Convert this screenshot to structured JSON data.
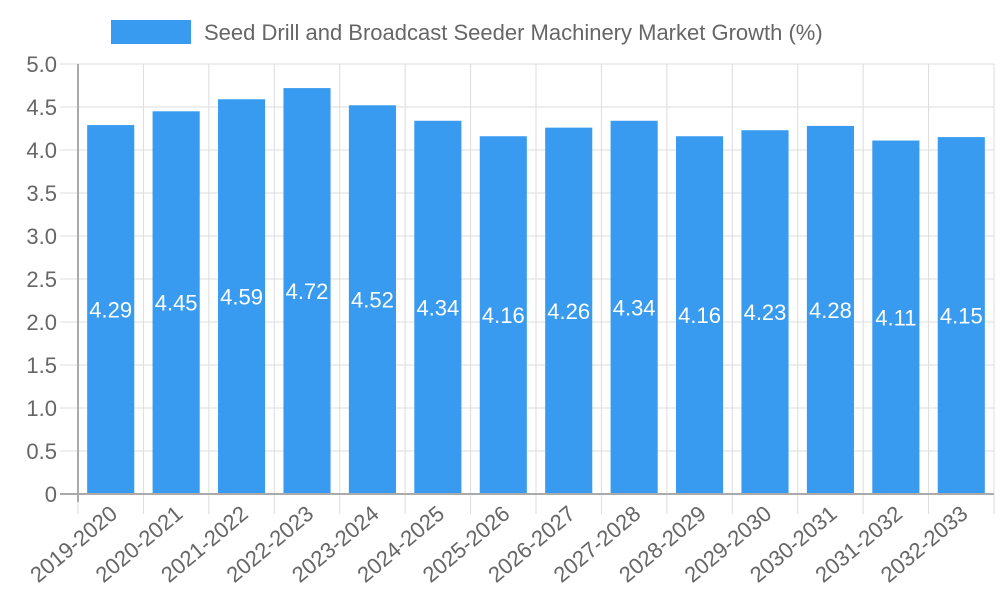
{
  "chart_data": {
    "type": "bar",
    "title": "",
    "legend": [
      {
        "label": "Seed Drill and Broadcast Seeder Machinery Market Growth (%)",
        "color": "#389BF0"
      }
    ],
    "legend_position": "top",
    "categories": [
      "2019-2020",
      "2020-2021",
      "2021-2022",
      "2022-2023",
      "2023-2024",
      "2024-2025",
      "2025-2026",
      "2026-2027",
      "2027-2028",
      "2028-2029",
      "2029-2030",
      "2030-2031",
      "2031-2032",
      "2032-2033"
    ],
    "series": [
      {
        "name": "Seed Drill and Broadcast Seeder Machinery Market Growth (%)",
        "values": [
          4.29,
          4.45,
          4.59,
          4.72,
          4.52,
          4.34,
          4.16,
          4.26,
          4.34,
          4.16,
          4.23,
          4.28,
          4.11,
          4.15
        ],
        "color": "#389BF0"
      }
    ],
    "data_labels": [
      "4.29",
      "4.45",
      "4.59",
      "4.72",
      "4.52",
      "4.34",
      "4.16",
      "4.26",
      "4.34",
      "4.16",
      "4.23",
      "4.28",
      "4.11",
      "4.15"
    ],
    "xlabel": "",
    "ylabel": "",
    "ylim": [
      0,
      5.0
    ],
    "yticks": [
      "0",
      "0.5",
      "1.0",
      "1.5",
      "2.0",
      "2.5",
      "3.0",
      "3.5",
      "4.0",
      "4.5",
      "5.0"
    ],
    "grid": true
  }
}
